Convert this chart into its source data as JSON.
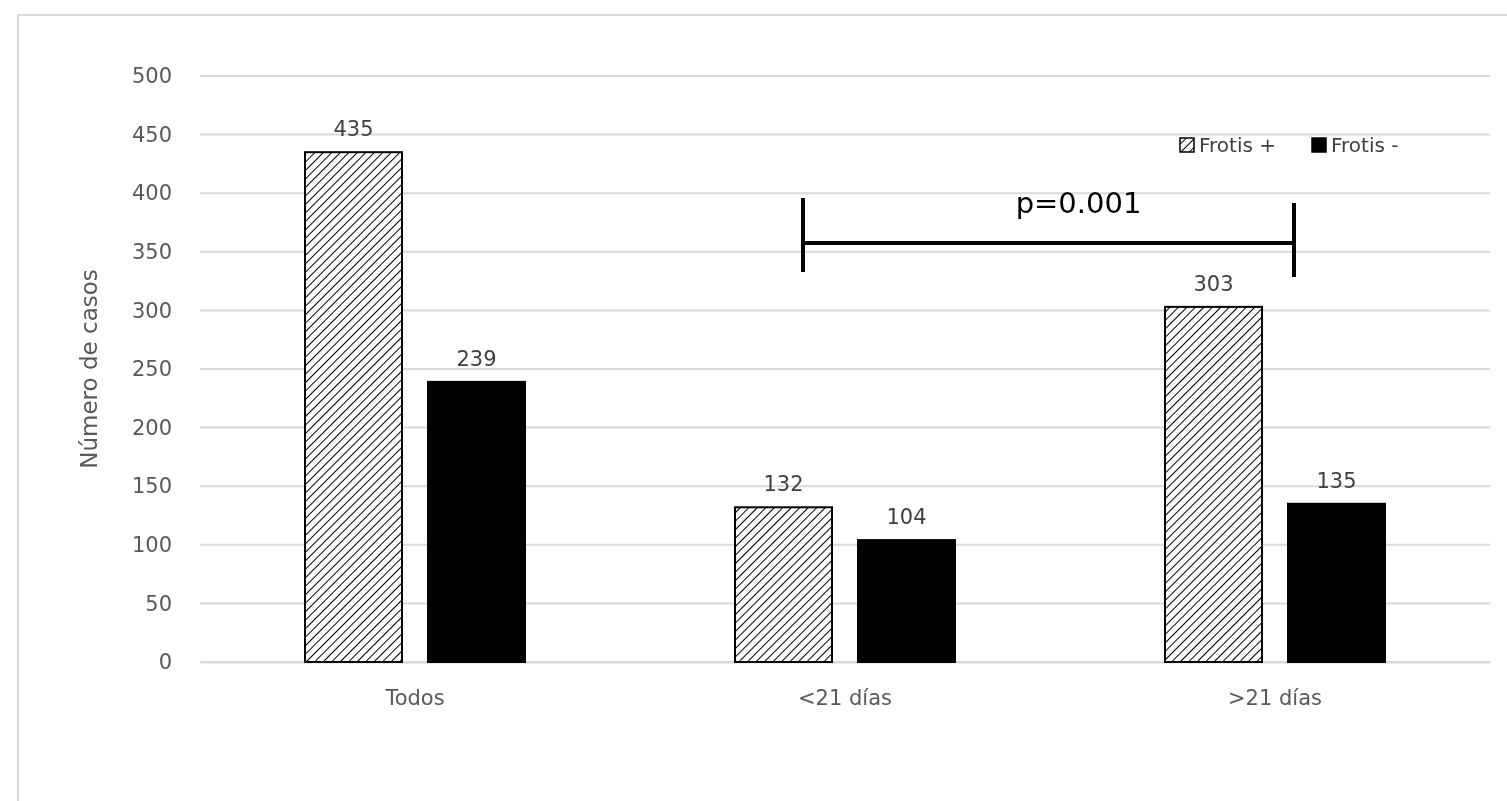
{
  "chart_data": {
    "type": "bar",
    "ylabel": "Número de casos",
    "categories": [
      "Todos",
      "<21 días",
      ">21 días"
    ],
    "series": [
      {
        "name": "Frotis +",
        "color": "#000000",
        "values": [
          435,
          132,
          303
        ]
      },
      {
        "name": "Frotis -",
        "color": "#000000",
        "values": [
          239,
          104,
          135
        ]
      }
    ],
    "ylim": [
      0,
      500
    ],
    "yticks": [
      0,
      50,
      100,
      150,
      200,
      250,
      300,
      350,
      400,
      450,
      500
    ],
    "grid": "y",
    "legend": "top right",
    "data_labels": true,
    "annotations": [
      "p=0.001"
    ]
  }
}
